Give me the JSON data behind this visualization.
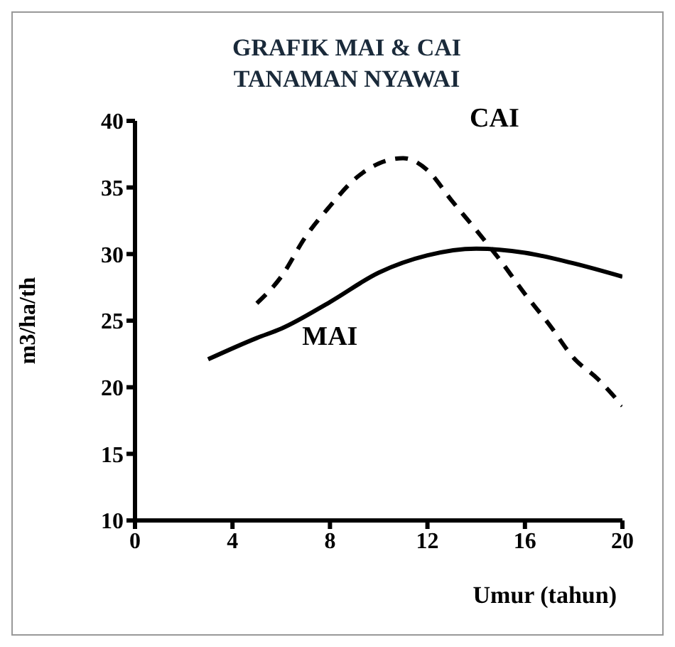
{
  "chart_data": {
    "type": "line",
    "title": "GRAFIK MAI & CAI TANAMAN NYAWAI",
    "xlabel": "Umur (tahun)",
    "ylabel": "m3/ha/th",
    "xlim": [
      0,
      20
    ],
    "xticks": [
      0,
      4,
      8,
      12,
      16,
      20
    ],
    "ylim": [
      10,
      40
    ],
    "yticks": [
      10,
      15,
      20,
      25,
      30,
      35,
      40
    ],
    "grid": false,
    "legend": false,
    "marker": "none",
    "series": [
      {
        "name": "CAI",
        "color": "#000000",
        "line_style": "dashed",
        "x": [
          5,
          6,
          7,
          8,
          9,
          10,
          11,
          12,
          13,
          14,
          15,
          16,
          17,
          18,
          19,
          20
        ],
        "values": [
          26.3,
          28.3,
          31.3,
          33.6,
          35.6,
          36.8,
          37.2,
          36.3,
          34.0,
          31.8,
          29.5,
          27.0,
          24.7,
          22.2,
          20.6,
          18.6
        ]
      },
      {
        "name": "MAI",
        "color": "#000000",
        "line_style": "solid",
        "x": [
          3,
          5,
          6,
          8,
          10,
          12,
          14,
          16,
          18,
          20
        ],
        "values": [
          22.1,
          23.7,
          24.4,
          26.4,
          28.6,
          29.9,
          30.4,
          30.1,
          29.3,
          28.3
        ]
      }
    ]
  }
}
